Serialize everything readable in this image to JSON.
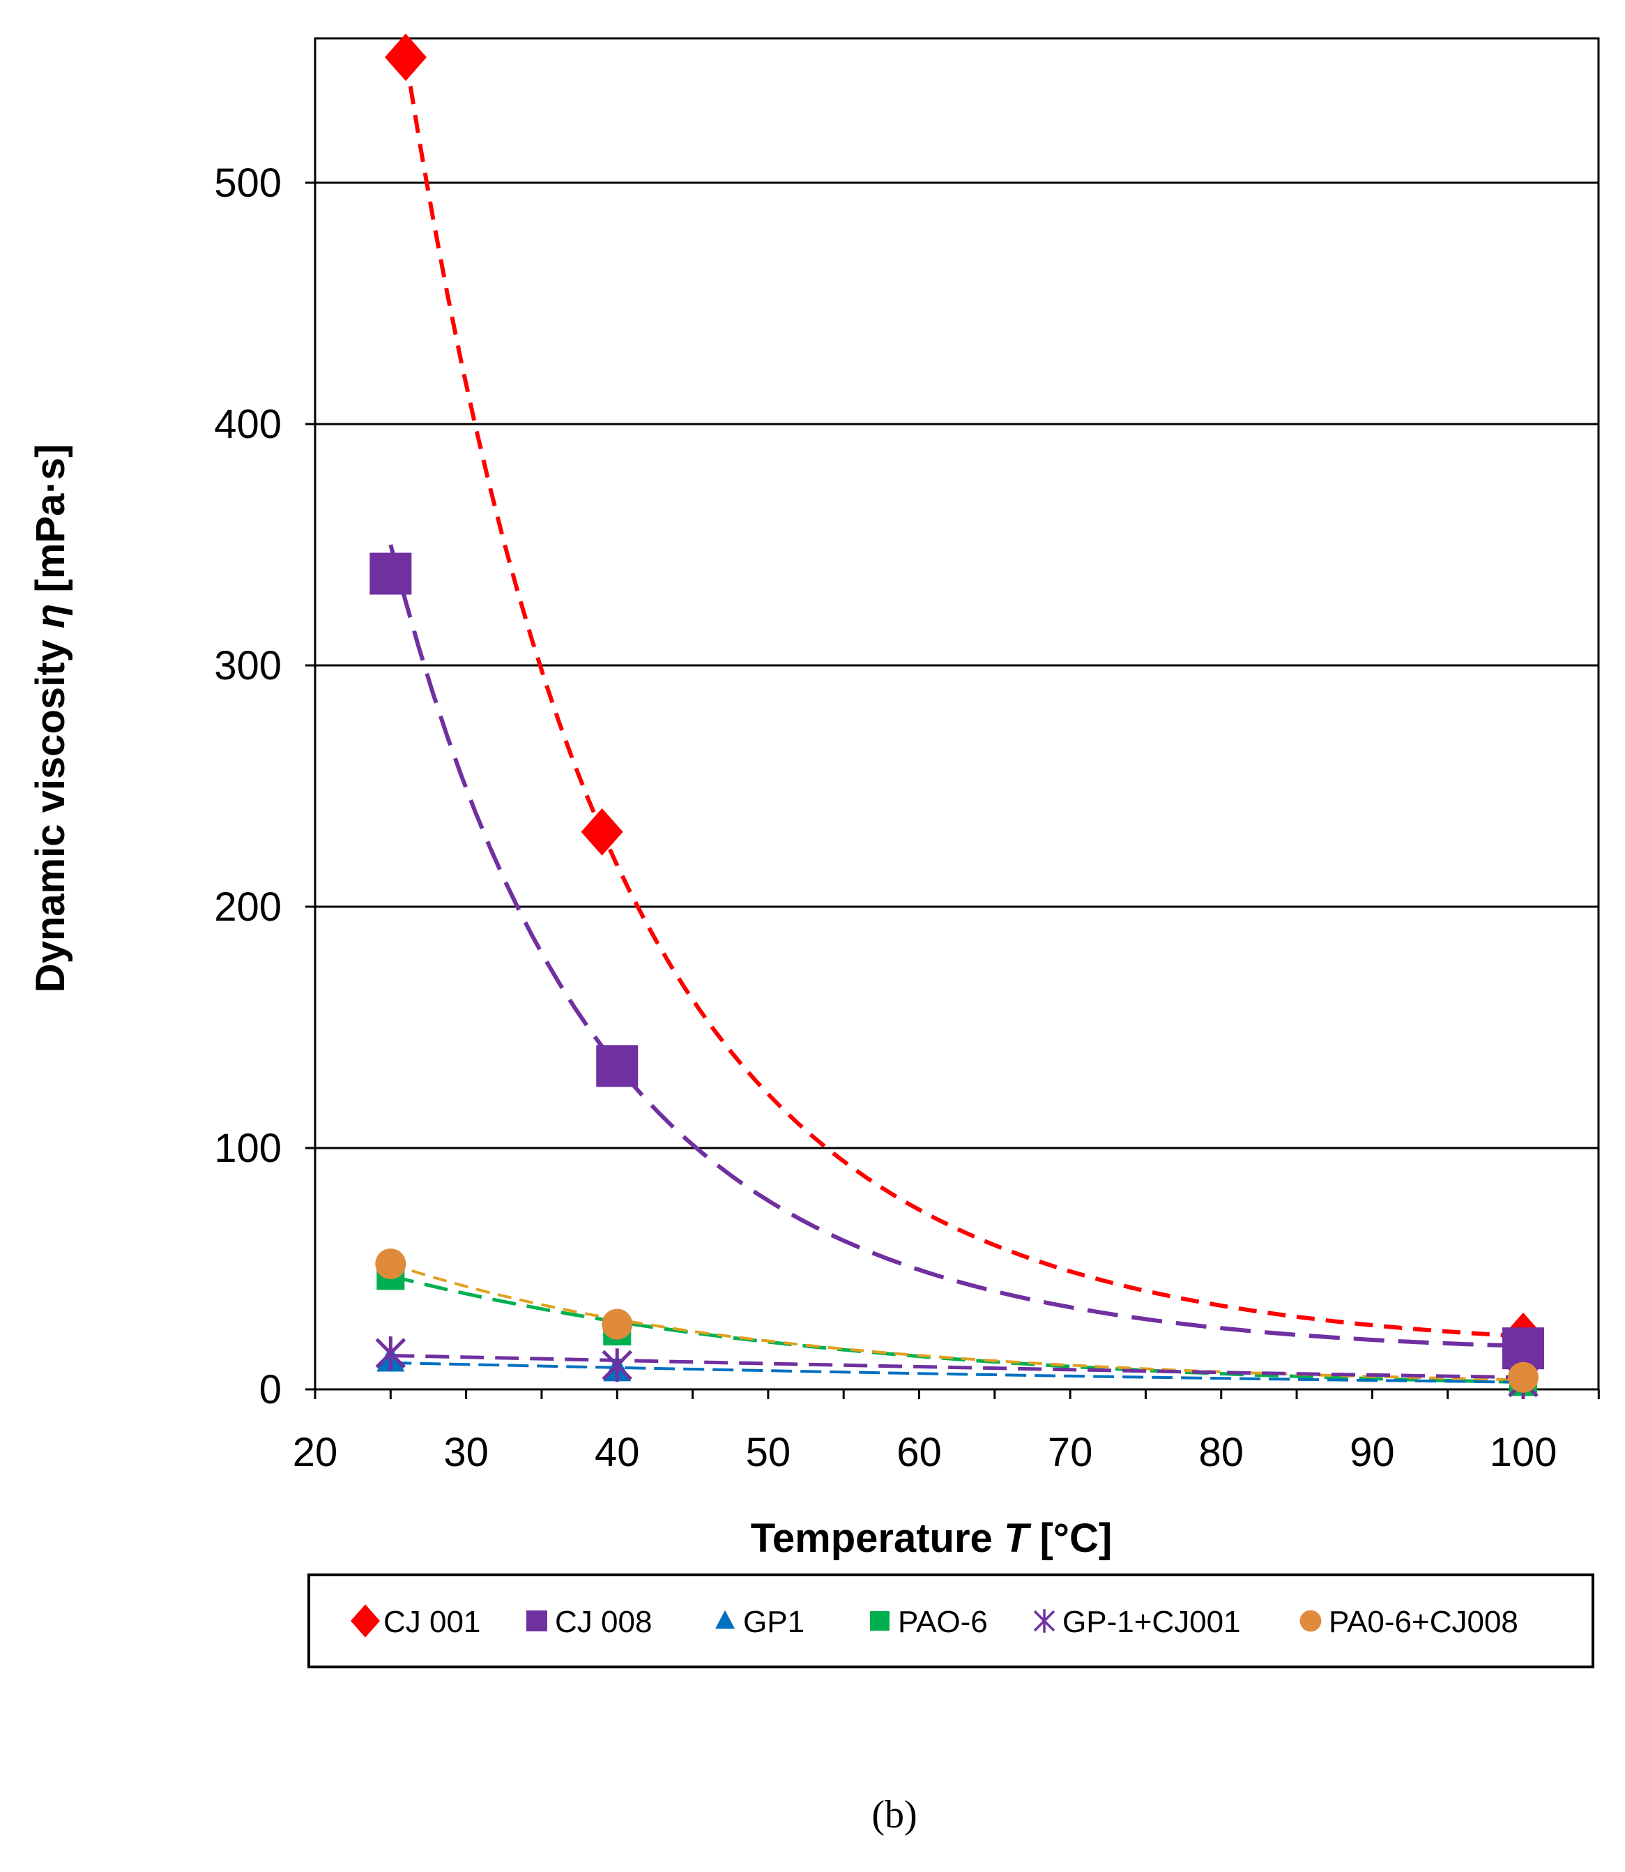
{
  "chart_data": {
    "type": "scatter",
    "xlabel_prefix": "Temperature ",
    "xlabel_var": "T",
    "xlabel_unit": " [°C]",
    "ylabel_prefix": "Dynamic viscosity ",
    "ylabel_var": "η",
    "ylabel_unit": " [mPa·s]",
    "xlim": [
      20,
      105
    ],
    "ylim": [
      0,
      560
    ],
    "xticks": [
      20,
      30,
      40,
      50,
      60,
      70,
      80,
      90,
      100
    ],
    "yticks": [
      0,
      100,
      200,
      300,
      400,
      500
    ],
    "grid": "horizontal",
    "legend_position": "bottom",
    "caption": "(b)",
    "series": [
      {
        "name": "CJ 001",
        "marker": "diamond",
        "color": "#ff0000",
        "x": [
          26,
          39,
          100
        ],
        "y": [
          552,
          231,
          22
        ]
      },
      {
        "name": "CJ 008",
        "marker": "square",
        "color": "#7030a0",
        "x": [
          25,
          40,
          100
        ],
        "y": [
          338,
          134,
          17
        ]
      },
      {
        "name": "GP1",
        "marker": "triangle",
        "color": "#0070c0",
        "x": [
          25,
          40,
          100
        ],
        "y": [
          12,
          8,
          3
        ]
      },
      {
        "name": "PAO-6",
        "marker": "square-small",
        "color": "#00b050",
        "x": [
          25,
          40,
          100
        ],
        "y": [
          47,
          24,
          3
        ]
      },
      {
        "name": "GP-1+CJ001",
        "marker": "asterisk",
        "color": "#7030a0",
        "x": [
          25,
          40,
          100
        ],
        "y": [
          15,
          10,
          3
        ]
      },
      {
        "name": "PA0-6+CJ008",
        "marker": "circle",
        "color": "#e08a3c",
        "x": [
          25,
          40,
          100
        ],
        "y": [
          52,
          27,
          5
        ]
      }
    ],
    "trendlines": [
      {
        "series": "CJ 001",
        "color": "#ff0000",
        "dash": "26,16",
        "width": 6,
        "x0": 26,
        "y0": 552,
        "xm": 39,
        "ym": 231,
        "x1": 100,
        "y1": 22,
        "curvature": 0.45
      },
      {
        "series": "CJ 008",
        "color": "#7030a0",
        "dash": "44,20",
        "width": 6,
        "x0": 25,
        "y0": 350,
        "xm": 40,
        "ym": 134,
        "x1": 100,
        "y1": 18,
        "curvature": 0.38
      },
      {
        "series": "PAO-6",
        "color": "#00b050",
        "dash": "34,16",
        "width": 5,
        "x0": 25,
        "y0": 47,
        "xm": 40,
        "ym": 28,
        "x1": 100,
        "y1": 3,
        "curvature": 0.1
      },
      {
        "series": "PA0-6+CJ008",
        "color": "#e0a020",
        "dash": "20,12",
        "width": 4,
        "x0": 25,
        "y0": 52,
        "xm": 40,
        "ym": 29,
        "x1": 100,
        "y1": 4,
        "curvature": 0.1
      },
      {
        "series": "GP-1+CJ001",
        "color": "#7030a0",
        "dash": "34,16",
        "width": 5,
        "x0": 25,
        "y0": 14,
        "xm": 40,
        "ym": 12,
        "x1": 100,
        "y1": 5,
        "curvature": 0.05
      },
      {
        "series": "GP1",
        "color": "#0070c0",
        "dash": "30,12",
        "width": 4,
        "x0": 25,
        "y0": 11,
        "xm": 40,
        "ym": 9,
        "x1": 100,
        "y1": 3,
        "curvature": 0.05
      }
    ]
  }
}
